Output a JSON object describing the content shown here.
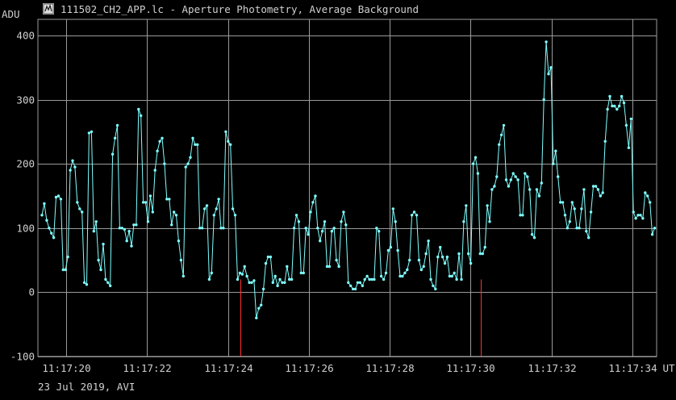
{
  "window": {
    "title": "111502_CH2_APP.lc - Aperture Photometry, Average Background",
    "icon": "lightcurve-app-icon"
  },
  "footer": {
    "date_label": "23 Jul 2019, AVI"
  },
  "colors": {
    "background": "#000000",
    "grid": "#9a9a9a",
    "series": "#7fffff",
    "marker": "#ff3030"
  },
  "chart_data": {
    "type": "line",
    "ylabel": "ADU",
    "xunit_label": "UT",
    "ylim": [
      -100,
      425
    ],
    "xlim": [
      "11:17:19.3",
      "11:17:34.6"
    ],
    "yticks": [
      -100,
      0,
      100,
      200,
      300,
      400
    ],
    "xticks": [
      "11:17:20",
      "11:17:22",
      "11:17:24",
      "11:17:26",
      "11:17:28",
      "11:17:30",
      "11:17:32",
      "11:17:34"
    ],
    "grid": true,
    "markers_x": [
      "11:17:24.3",
      "11:17:30.25"
    ],
    "series": [
      {
        "values": [
          120,
          138,
          112,
          100,
          92,
          85,
          148,
          150,
          145,
          35,
          35,
          55,
          190,
          205,
          195,
          140,
          130,
          125,
          15,
          12,
          248,
          250,
          95,
          110,
          50,
          35,
          75,
          20,
          15,
          10,
          215,
          240,
          260,
          100,
          100,
          98,
          80,
          95,
          72,
          105,
          105,
          285,
          275,
          140,
          140,
          110,
          150,
          125,
          190,
          220,
          235,
          240,
          200,
          145,
          145,
          105,
          125,
          120,
          80,
          50,
          25,
          195,
          200,
          210,
          240,
          230,
          230,
          100,
          100,
          130,
          135,
          20,
          30,
          120,
          130,
          145,
          100,
          100,
          250,
          235,
          230,
          130,
          120,
          20,
          30,
          28,
          40,
          25,
          15,
          15,
          18,
          -40,
          -25,
          -20,
          5,
          45,
          55,
          55,
          15,
          25,
          10,
          20,
          15,
          15,
          40,
          20,
          20,
          100,
          120,
          110,
          30,
          30,
          100,
          90,
          125,
          140,
          150,
          100,
          80,
          95,
          110,
          40,
          40,
          95,
          100,
          50,
          40,
          110,
          125,
          105,
          15,
          10,
          5,
          5,
          15,
          15,
          10,
          20,
          25,
          20,
          20,
          20,
          100,
          95,
          25,
          20,
          30,
          65,
          70,
          130,
          110,
          65,
          25,
          25,
          30,
          35,
          50,
          120,
          125,
          120,
          50,
          35,
          40,
          60,
          80,
          20,
          10,
          5,
          55,
          70,
          55,
          45,
          55,
          25,
          25,
          30,
          20,
          60,
          20,
          110,
          135,
          60,
          45,
          200,
          210,
          185,
          60,
          60,
          70,
          135,
          110,
          160,
          165,
          180,
          230,
          245,
          260,
          175,
          165,
          175,
          185,
          180,
          175,
          120,
          120,
          185,
          180,
          160,
          90,
          85,
          160,
          150,
          170,
          300,
          390,
          340,
          350,
          200,
          220,
          180,
          140,
          140,
          120,
          100,
          110,
          140,
          130,
          100,
          100,
          130,
          160,
          95,
          85,
          125,
          165,
          165,
          160,
          150,
          155,
          235,
          285,
          305,
          290,
          290,
          285,
          290,
          305,
          295,
          260,
          225,
          270,
          125,
          115,
          120,
          120,
          115,
          155,
          150,
          140,
          90,
          100
        ]
      }
    ]
  }
}
